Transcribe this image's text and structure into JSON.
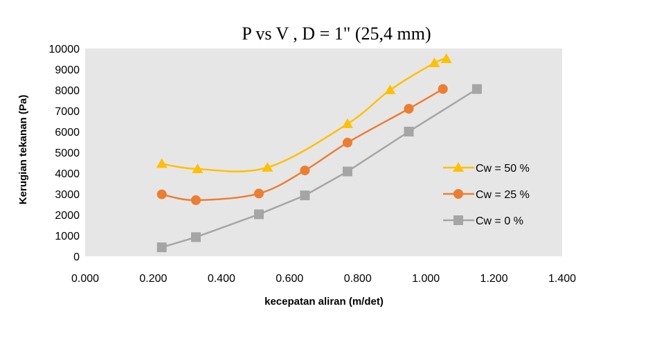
{
  "chart_data": {
    "type": "scatter",
    "title": "P  vs  V , D = 1\" (25,4 mm)",
    "xlabel": "kecepatan aliran  (m/det)",
    "ylabel": "Kerugian tekanan  (Pa)",
    "xlim": [
      0.0,
      1.4
    ],
    "ylim": [
      0,
      10000
    ],
    "x_ticks": [
      "0.000",
      "0.200",
      "0.400",
      "0.600",
      "0.800",
      "1.000",
      "1.200",
      "1.400"
    ],
    "y_ticks": [
      "0",
      "1000",
      "2000",
      "3000",
      "4000",
      "5000",
      "6000",
      "7000",
      "8000",
      "9000",
      "10000"
    ],
    "grid": false,
    "plot_background": "#e6e6e6",
    "legend_position": "right",
    "series": [
      {
        "name": "Cw = 50 %",
        "color": "#ffc000",
        "marker": "triangle",
        "smooth": true,
        "points": [
          [
            0.225,
            4450
          ],
          [
            0.33,
            4200
          ],
          [
            0.535,
            4270
          ],
          [
            0.77,
            6370
          ],
          [
            0.895,
            8000
          ],
          [
            1.025,
            9300
          ],
          [
            1.06,
            9500
          ]
        ]
      },
      {
        "name": "Cw = 25 %",
        "color": "#ed7d31",
        "marker": "circle",
        "smooth": true,
        "points": [
          [
            0.225,
            2980
          ],
          [
            0.325,
            2700
          ],
          [
            0.51,
            3020
          ],
          [
            0.645,
            4130
          ],
          [
            0.77,
            5470
          ],
          [
            0.95,
            7100
          ],
          [
            1.05,
            8050
          ]
        ]
      },
      {
        "name": "Cw = 0 %",
        "color": "#a5a5a5",
        "marker": "square",
        "smooth": false,
        "points": [
          [
            0.225,
            430
          ],
          [
            0.325,
            920
          ],
          [
            0.51,
            2020
          ],
          [
            0.645,
            2930
          ],
          [
            0.77,
            4080
          ],
          [
            0.95,
            6000
          ],
          [
            1.15,
            8050
          ]
        ]
      }
    ]
  }
}
